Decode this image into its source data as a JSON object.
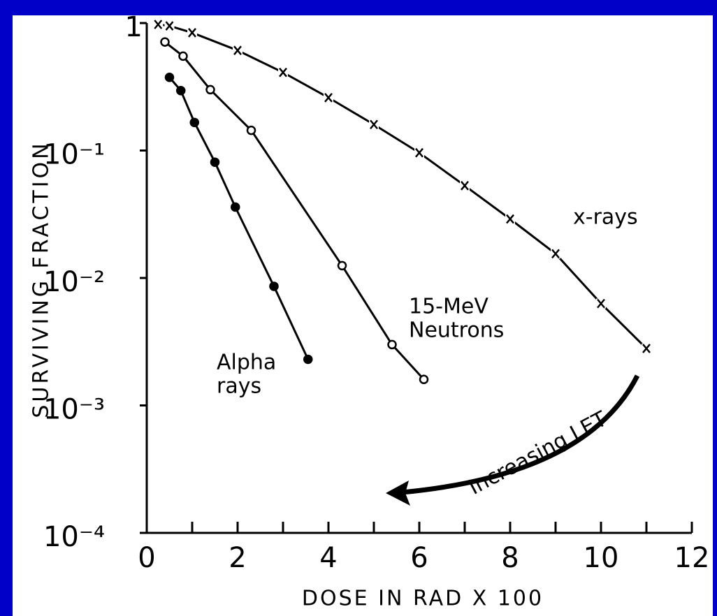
{
  "chart_data": {
    "type": "scatter",
    "y_label": "SURVIVING FRACTION",
    "x_label": "DOSE IN RAD  X 100",
    "log_y": true,
    "xlim": [
      0,
      12
    ],
    "xticks": [
      0,
      2,
      4,
      6,
      8,
      10,
      12
    ],
    "xminor": [
      1,
      3,
      5,
      7,
      9,
      11
    ],
    "ylim": [
      0.0001,
      1
    ],
    "yticks": [
      {
        "value": 0.0001,
        "label": "10⁻⁴"
      },
      {
        "value": 0.001,
        "label": "10⁻³"
      },
      {
        "value": 0.01,
        "label": "10⁻²"
      },
      {
        "value": 0.1,
        "label": "10⁻¹"
      },
      1
    ],
    "series": [
      {
        "label_lines": [
          "x-rays"
        ],
        "marker": "x",
        "color": "#000000",
        "x": [
          0.25,
          0.5,
          1,
          2,
          3,
          4,
          5,
          6,
          7,
          8,
          9,
          10,
          11
        ],
        "values": [
          0.975,
          0.95,
          0.84,
          0.61,
          0.41,
          0.26,
          0.16,
          0.096,
          0.053,
          0.029,
          0.0155,
          0.0063,
          0.0028
        ]
      },
      {
        "label_lines": [
          "15-MeV",
          "Neutrons"
        ],
        "marker": "open-circle",
        "color": "#000000",
        "x": [
          0.4,
          0.8,
          1.4,
          2.3,
          4.3,
          5.4,
          6.1
        ],
        "values": [
          0.71,
          0.55,
          0.3,
          0.144,
          0.0125,
          0.003,
          0.0016
        ]
      },
      {
        "label_lines": [
          "Alpha",
          "rays"
        ],
        "marker": "filled-circle",
        "color": "#000000",
        "x": [
          0.5,
          0.75,
          1.05,
          1.5,
          1.95,
          2.8,
          3.55
        ],
        "values": [
          0.375,
          0.295,
          0.166,
          0.081,
          0.036,
          0.0086,
          0.0023
        ]
      }
    ],
    "annotation": "Increasing LET"
  }
}
